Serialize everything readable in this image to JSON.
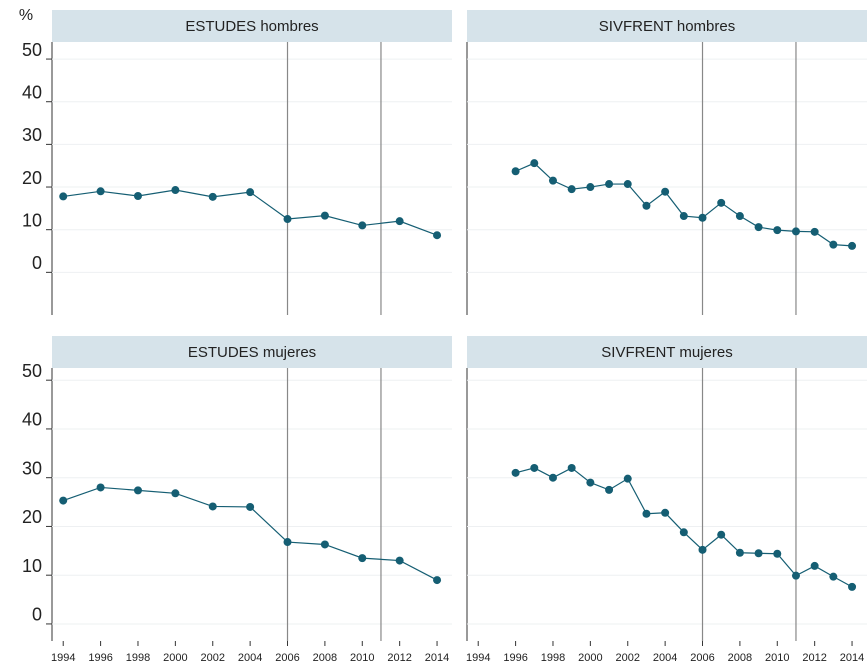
{
  "chart_data": [
    {
      "type": "line",
      "title": "ESTUDES hombres",
      "y_label": "%",
      "x": [
        1994,
        1996,
        1998,
        2000,
        2002,
        2004,
        2006,
        2008,
        2010,
        2012,
        2014
      ],
      "values": [
        17.8,
        19,
        17.9,
        19.3,
        17.7,
        18.8,
        12.5,
        13.3,
        11,
        12,
        8.7
      ],
      "color": "#155e73",
      "xlim": [
        1993.4,
        2014.8
      ],
      "ylim": [
        -10,
        54
      ],
      "yticks": [
        0,
        10,
        20,
        30,
        40,
        50
      ],
      "vlines": [
        2006,
        2011
      ],
      "grid": true
    },
    {
      "type": "line",
      "title": "SIVFRENT hombres",
      "x": [
        1996,
        1997,
        1998,
        1999,
        2000,
        2001,
        2002,
        2003,
        2004,
        2005,
        2006,
        2007,
        2008,
        2009,
        2010,
        2011,
        2012,
        2013,
        2014
      ],
      "values": [
        23.7,
        25.6,
        21.5,
        19.5,
        20,
        20.7,
        20.7,
        15.6,
        18.9,
        13.2,
        12.8,
        16.3,
        13.2,
        10.6,
        9.9,
        9.6,
        9.5,
        6.5,
        6.2
      ],
      "color": "#155e73",
      "xlim": [
        1993.4,
        2014.8
      ],
      "ylim": [
        -10,
        54
      ],
      "yticks": [
        0,
        10,
        20,
        30,
        40,
        50
      ],
      "vlines": [
        2006,
        2011
      ],
      "grid": true
    },
    {
      "type": "line",
      "title": "ESTUDES mujeres",
      "x": [
        1994,
        1996,
        1998,
        2000,
        2002,
        2004,
        2006,
        2008,
        2010,
        2012,
        2014
      ],
      "values": [
        25.3,
        28,
        27.4,
        26.8,
        24.1,
        24,
        16.8,
        16.3,
        13.5,
        13,
        9
      ],
      "color": "#155e73",
      "xlim": [
        1993.4,
        2014.8
      ],
      "ylim": [
        -3.5,
        52.5
      ],
      "yticks": [
        0,
        10,
        20,
        30,
        40,
        50
      ],
      "xticks": [
        1994,
        1996,
        1998,
        2000,
        2002,
        2004,
        2006,
        2008,
        2010,
        2012,
        2014
      ],
      "vlines": [
        2006,
        2011
      ],
      "grid": true
    },
    {
      "type": "line",
      "title": "SIVFRENT mujeres",
      "x": [
        1996,
        1997,
        1998,
        1999,
        2000,
        2001,
        2002,
        2003,
        2004,
        2005,
        2006,
        2007,
        2008,
        2009,
        2010,
        2011,
        2012,
        2013,
        2014
      ],
      "values": [
        31,
        32,
        30,
        32,
        29,
        27.5,
        29.8,
        22.6,
        22.8,
        18.8,
        15.2,
        18.3,
        14.6,
        14.5,
        14.4,
        9.9,
        11.9,
        9.7,
        7.6
      ],
      "color": "#155e73",
      "xlim": [
        1993.4,
        2014.8
      ],
      "ylim": [
        -3.5,
        52.5
      ],
      "yticks": [
        0,
        10,
        20,
        30,
        40,
        50
      ],
      "xticks": [
        1994,
        1996,
        1998,
        2000,
        2002,
        2004,
        2006,
        2008,
        2010,
        2012,
        2014
      ],
      "vlines": [
        2006,
        2011
      ],
      "grid": true
    }
  ]
}
